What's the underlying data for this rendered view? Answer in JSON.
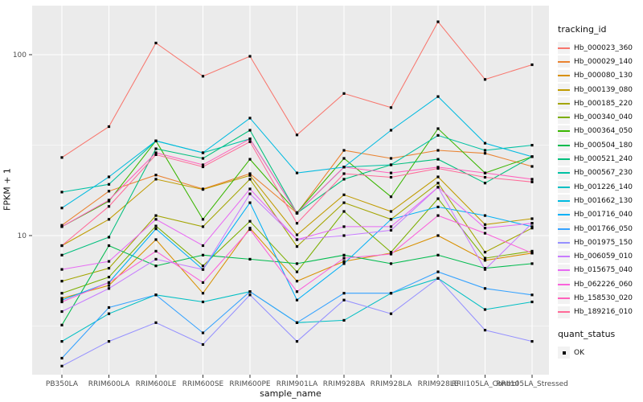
{
  "colors": {
    "panel_bg": "#EBEBEB",
    "grid_major": "#FFFFFF",
    "grid_minor": "#FFFFFF",
    "axis_text": "#4D4D4D",
    "title_text": "#111111",
    "tick_mark": "#333333",
    "legend_key_bg": "#F2F2F2",
    "point": "#000000"
  },
  "chart_data": {
    "type": "line",
    "title": "",
    "xlabel": "sample_name",
    "ylabel": "FPKM + 1",
    "y_scale": "log10",
    "grid": true,
    "legend_position": "right",
    "point_shape": "square",
    "y_ticks": [
      10,
      100
    ],
    "y_minor_ticks": [
      3.162,
      31.62
    ],
    "ylim": [
      1.7,
      187
    ],
    "categories": [
      "PB350LA",
      "RRIM600LA",
      "RRIM600LE",
      "RRIM600SE",
      "RRIM600PE",
      "RRIM901LA",
      "RRIM928BA",
      "RRIM928LA",
      "RRIM928LE",
      "RRII105LA_Control",
      "RRII105LA_Stressed"
    ],
    "series": [
      {
        "name": "Hb_000023_360",
        "color": "#F8766D",
        "values": [
          27,
          40,
          116,
          76,
          98,
          36,
          61,
          51,
          152,
          73,
          88
        ]
      },
      {
        "name": "Hb_000029_140",
        "color": "#EA8331",
        "values": [
          11.4,
          17.6,
          21.6,
          18.1,
          22.0,
          13.3,
          29.6,
          26.7,
          29.6,
          28.5,
          24.1
        ]
      },
      {
        "name": "Hb_000080_130",
        "color": "#D89000",
        "values": [
          4.5,
          5.3,
          9.5,
          4.8,
          11.0,
          5.6,
          7.2,
          8.0,
          10.0,
          7.3,
          8.0
        ]
      },
      {
        "name": "Hb_000139_080",
        "color": "#C09B00",
        "values": [
          8.8,
          12.3,
          20.5,
          18.0,
          21.5,
          10.1,
          16.8,
          13.6,
          21.1,
          11.5,
          12.4
        ]
      },
      {
        "name": "Hb_000185_220",
        "color": "#A3A500",
        "values": [
          5.6,
          6.6,
          12.9,
          11.2,
          20.5,
          8.7,
          15.2,
          12.3,
          19.5,
          8.1,
          11.0
        ]
      },
      {
        "name": "Hb_000340_040",
        "color": "#7CAE00",
        "values": [
          4.8,
          5.9,
          11.3,
          6.8,
          12.0,
          6.3,
          13.6,
          8.1,
          16.0,
          7.5,
          8.2
        ]
      },
      {
        "name": "Hb_000364_050",
        "color": "#39B600",
        "values": [
          11.2,
          15.5,
          33.4,
          12.3,
          26.4,
          13.4,
          26.7,
          16.4,
          39.0,
          22.2,
          27.3
        ]
      },
      {
        "name": "Hb_000504_180",
        "color": "#00BB4E",
        "values": [
          3.2,
          8.8,
          6.8,
          7.8,
          7.4,
          7.0,
          7.8,
          7.0,
          7.8,
          6.6,
          7.0
        ]
      },
      {
        "name": "Hb_000521_240",
        "color": "#00BF7D",
        "values": [
          7.8,
          9.8,
          30.2,
          26.7,
          38.2,
          13.3,
          20.5,
          24.6,
          26.4,
          19.5,
          27.3
        ]
      },
      {
        "name": "Hb_000567_230",
        "color": "#00C1A3",
        "values": [
          17.4,
          19.2,
          33.4,
          28.7,
          34.2,
          13.3,
          23.9,
          24.6,
          35.8,
          29.6,
          31.6
        ]
      },
      {
        "name": "Hb_001226_140",
        "color": "#00BFC4",
        "values": [
          2.6,
          3.7,
          4.7,
          4.3,
          4.9,
          3.3,
          3.4,
          4.8,
          5.8,
          3.9,
          4.3
        ]
      },
      {
        "name": "Hb_001662_130",
        "color": "#00BAE0",
        "values": [
          14.2,
          21.1,
          33.4,
          28.7,
          44.6,
          22.2,
          23.9,
          38.2,
          58.7,
          32.4,
          27.3
        ]
      },
      {
        "name": "Hb_001716_040",
        "color": "#00B0F6",
        "values": [
          4.4,
          5.5,
          10.9,
          6.5,
          15.2,
          4.4,
          7.0,
          12.3,
          14.4,
          12.9,
          11.2
        ]
      },
      {
        "name": "Hb_001766_050",
        "color": "#35A2FF",
        "values": [
          2.1,
          4.0,
          4.7,
          2.9,
          4.9,
          3.3,
          4.8,
          4.8,
          6.3,
          5.1,
          4.7
        ]
      },
      {
        "name": "Hb_001975_150",
        "color": "#9590FF",
        "values": [
          1.9,
          2.6,
          3.3,
          2.5,
          4.7,
          2.6,
          4.4,
          3.7,
          5.8,
          3.0,
          2.6
        ]
      },
      {
        "name": "Hb_006059_010",
        "color": "#C77CFF",
        "values": [
          3.8,
          5.1,
          7.4,
          6.5,
          17.0,
          9.5,
          10.0,
          10.7,
          18.5,
          6.5,
          11.7
        ]
      },
      {
        "name": "Hb_015675_040",
        "color": "#E76BF3",
        "values": [
          6.5,
          7.2,
          12.3,
          8.8,
          18.1,
          9.5,
          11.2,
          11.2,
          18.5,
          11.0,
          11.7
        ]
      },
      {
        "name": "Hb_062226_060",
        "color": "#FA62DB",
        "values": [
          4.3,
          5.5,
          8.2,
          5.5,
          10.8,
          4.9,
          7.5,
          7.9,
          12.9,
          10.3,
          8.0
        ]
      },
      {
        "name": "Hb_158530_020",
        "color": "#FF62BC",
        "values": [
          11.2,
          15.7,
          28.7,
          24.6,
          34.2,
          13.3,
          23.9,
          22.2,
          23.9,
          22.2,
          20.5
        ]
      },
      {
        "name": "Hb_189216_010",
        "color": "#FF6A98",
        "values": [
          8.8,
          14.5,
          28.0,
          24.0,
          33.0,
          11.7,
          22.0,
          21.0,
          23.5,
          21.0,
          19.8
        ]
      }
    ],
    "legend": {
      "color_title": "tracking_id",
      "shape_title": "quant_status",
      "shape_items": [
        {
          "label": "OK"
        }
      ]
    }
  }
}
